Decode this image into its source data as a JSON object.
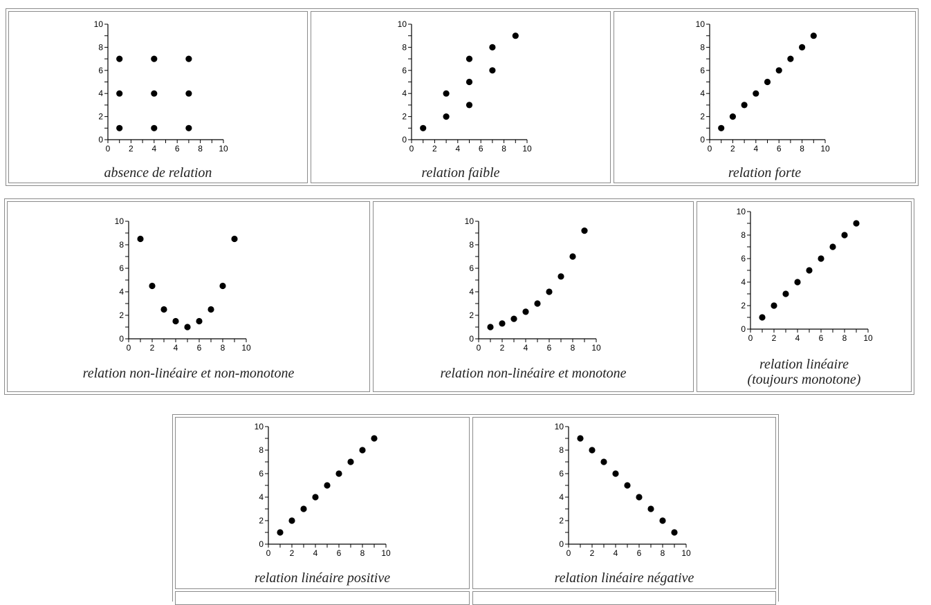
{
  "chart_data": [
    {
      "type": "scatter",
      "caption": [
        "absence de relation"
      ],
      "xlim": [
        0,
        10
      ],
      "ylim": [
        0,
        10
      ],
      "xticks": [
        0,
        2,
        4,
        6,
        8,
        10
      ],
      "yticks": [
        0,
        2,
        4,
        6,
        8,
        10
      ],
      "grid": false,
      "points": [
        [
          1,
          1
        ],
        [
          1,
          4
        ],
        [
          1,
          7
        ],
        [
          4,
          1
        ],
        [
          4,
          4
        ],
        [
          4,
          7
        ],
        [
          7,
          1
        ],
        [
          7,
          4
        ],
        [
          7,
          7
        ]
      ]
    },
    {
      "type": "scatter",
      "caption": [
        "relation faible"
      ],
      "xlim": [
        0,
        10
      ],
      "ylim": [
        0,
        10
      ],
      "xticks": [
        0,
        2,
        4,
        6,
        8,
        10
      ],
      "yticks": [
        0,
        2,
        4,
        6,
        8,
        10
      ],
      "grid": false,
      "points": [
        [
          1,
          1
        ],
        [
          3,
          2
        ],
        [
          3,
          4
        ],
        [
          5,
          3
        ],
        [
          5,
          5
        ],
        [
          5,
          7
        ],
        [
          7,
          6
        ],
        [
          7,
          8
        ],
        [
          9,
          9
        ]
      ]
    },
    {
      "type": "scatter",
      "caption": [
        "relation forte"
      ],
      "xlim": [
        0,
        10
      ],
      "ylim": [
        0,
        10
      ],
      "xticks": [
        0,
        2,
        4,
        6,
        8,
        10
      ],
      "yticks": [
        0,
        2,
        4,
        6,
        8,
        10
      ],
      "grid": false,
      "points": [
        [
          1,
          1
        ],
        [
          2,
          2
        ],
        [
          3,
          3
        ],
        [
          4,
          4
        ],
        [
          5,
          5
        ],
        [
          6,
          6
        ],
        [
          7,
          7
        ],
        [
          8,
          8
        ],
        [
          9,
          9
        ]
      ]
    },
    {
      "type": "scatter",
      "caption": [
        "relation non-linéaire et non-monotone"
      ],
      "xlim": [
        0,
        10
      ],
      "ylim": [
        0,
        10
      ],
      "xticks": [
        0,
        2,
        4,
        6,
        8,
        10
      ],
      "yticks": [
        0,
        2,
        4,
        6,
        8,
        10
      ],
      "grid": false,
      "points": [
        [
          1,
          8.5
        ],
        [
          2,
          4.5
        ],
        [
          3,
          2.5
        ],
        [
          4,
          1.5
        ],
        [
          5,
          1
        ],
        [
          6,
          1.5
        ],
        [
          7,
          2.5
        ],
        [
          8,
          4.5
        ],
        [
          9,
          8.5
        ]
      ]
    },
    {
      "type": "scatter",
      "caption": [
        "relation non-linéaire et monotone"
      ],
      "xlim": [
        0,
        10
      ],
      "ylim": [
        0,
        10
      ],
      "xticks": [
        0,
        2,
        4,
        6,
        8,
        10
      ],
      "yticks": [
        0,
        2,
        4,
        6,
        8,
        10
      ],
      "grid": false,
      "points": [
        [
          1,
          1
        ],
        [
          2,
          1.3
        ],
        [
          3,
          1.7
        ],
        [
          4,
          2.3
        ],
        [
          5,
          3
        ],
        [
          6,
          4
        ],
        [
          7,
          5.3
        ],
        [
          8,
          7
        ],
        [
          9,
          9.2
        ]
      ]
    },
    {
      "type": "scatter",
      "caption": [
        "relation linéaire",
        "(toujours monotone)"
      ],
      "xlim": [
        0,
        10
      ],
      "ylim": [
        0,
        10
      ],
      "xticks": [
        0,
        2,
        4,
        6,
        8,
        10
      ],
      "yticks": [
        0,
        2,
        4,
        6,
        8,
        10
      ],
      "grid": false,
      "points": [
        [
          1,
          1
        ],
        [
          2,
          2
        ],
        [
          3,
          3
        ],
        [
          4,
          4
        ],
        [
          5,
          5
        ],
        [
          6,
          6
        ],
        [
          7,
          7
        ],
        [
          8,
          8
        ],
        [
          9,
          9
        ]
      ]
    },
    {
      "type": "scatter",
      "caption": [
        "relation linéaire positive"
      ],
      "xlim": [
        0,
        10
      ],
      "ylim": [
        0,
        10
      ],
      "xticks": [
        0,
        2,
        4,
        6,
        8,
        10
      ],
      "yticks": [
        0,
        2,
        4,
        6,
        8,
        10
      ],
      "grid": false,
      "points": [
        [
          1,
          1
        ],
        [
          2,
          2
        ],
        [
          3,
          3
        ],
        [
          4,
          4
        ],
        [
          5,
          5
        ],
        [
          6,
          6
        ],
        [
          7,
          7
        ],
        [
          8,
          8
        ],
        [
          9,
          9
        ]
      ]
    },
    {
      "type": "scatter",
      "caption": [
        "relation linéaire négative"
      ],
      "xlim": [
        0,
        10
      ],
      "ylim": [
        0,
        10
      ],
      "xticks": [
        0,
        2,
        4,
        6,
        8,
        10
      ],
      "yticks": [
        0,
        2,
        4,
        6,
        8,
        10
      ],
      "grid": false,
      "points": [
        [
          1,
          9
        ],
        [
          2,
          8
        ],
        [
          3,
          7
        ],
        [
          4,
          6
        ],
        [
          5,
          5
        ],
        [
          6,
          4
        ],
        [
          7,
          3
        ],
        [
          8,
          2
        ],
        [
          9,
          1
        ]
      ]
    }
  ]
}
